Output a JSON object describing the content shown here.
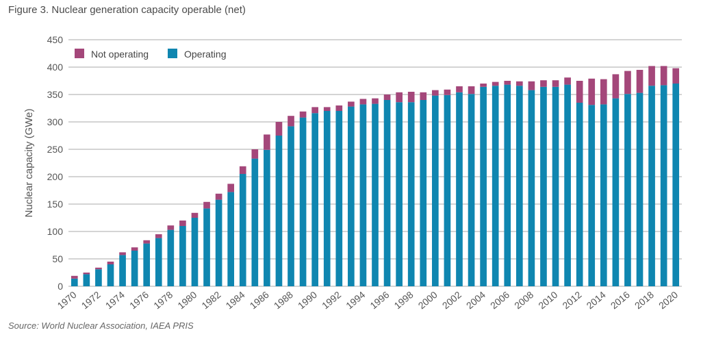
{
  "header": {
    "title": "Figure 3. Nuclear generation capacity operable (net)"
  },
  "footer": {
    "source": "Source: World Nuclear Association, IAEA PRIS"
  },
  "colors": {
    "operating": "#0f86b0",
    "not_operating": "#a4477a",
    "grid": "#aaaaaa"
  },
  "chart_data": {
    "type": "bar",
    "stacked": true,
    "title": "Figure 3. Nuclear generation capacity operable (net)",
    "xlabel": "",
    "ylabel": "Nuclear capacity (GWe)",
    "ylim": [
      0,
      450
    ],
    "yticks": [
      0,
      50,
      100,
      150,
      200,
      250,
      300,
      350,
      400,
      450
    ],
    "grid": true,
    "legend_position": "top-left",
    "categories": [
      "1970",
      "1971",
      "1972",
      "1973",
      "1974",
      "1975",
      "1976",
      "1977",
      "1978",
      "1979",
      "1980",
      "1981",
      "1982",
      "1983",
      "1984",
      "1985",
      "1986",
      "1987",
      "1988",
      "1989",
      "1990",
      "1991",
      "1992",
      "1993",
      "1994",
      "1995",
      "1996",
      "1997",
      "1998",
      "1999",
      "2000",
      "2001",
      "2002",
      "2003",
      "2004",
      "2005",
      "2006",
      "2007",
      "2008",
      "2009",
      "2010",
      "2011",
      "2012",
      "2013",
      "2014",
      "2015",
      "2016",
      "2017",
      "2018",
      "2019",
      "2020"
    ],
    "tick_labels": [
      "1970",
      "1972",
      "1974",
      "1976",
      "1978",
      "1980",
      "1982",
      "1984",
      "1986",
      "1988",
      "1990",
      "1992",
      "1994",
      "1996",
      "1998",
      "2000",
      "2002",
      "2004",
      "2006",
      "2008",
      "2010",
      "2012",
      "2014",
      "2016",
      "2018",
      "2020"
    ],
    "series": [
      {
        "name": "Operating",
        "values": [
          14,
          22,
          31,
          40,
          57,
          65,
          78,
          88,
          103,
          110,
          125,
          142,
          158,
          172,
          205,
          233,
          249,
          275,
          292,
          308,
          316,
          320,
          320,
          328,
          332,
          333,
          340,
          336,
          336,
          340,
          348,
          349,
          354,
          351,
          364,
          366,
          368,
          366,
          358,
          364,
          364,
          368,
          335,
          331,
          332,
          343,
          351,
          353,
          366,
          367,
          370
        ]
      },
      {
        "name": "Not operating",
        "values": [
          5,
          3,
          3,
          5,
          5,
          6,
          6,
          7,
          8,
          10,
          9,
          12,
          11,
          15,
          14,
          17,
          28,
          25,
          19,
          11,
          11,
          7,
          10,
          9,
          10,
          10,
          10,
          18,
          19,
          14,
          10,
          10,
          11,
          14,
          6,
          7,
          7,
          8,
          16,
          12,
          12,
          13,
          40,
          48,
          46,
          44,
          42,
          42,
          36,
          35,
          28
        ]
      }
    ]
  }
}
